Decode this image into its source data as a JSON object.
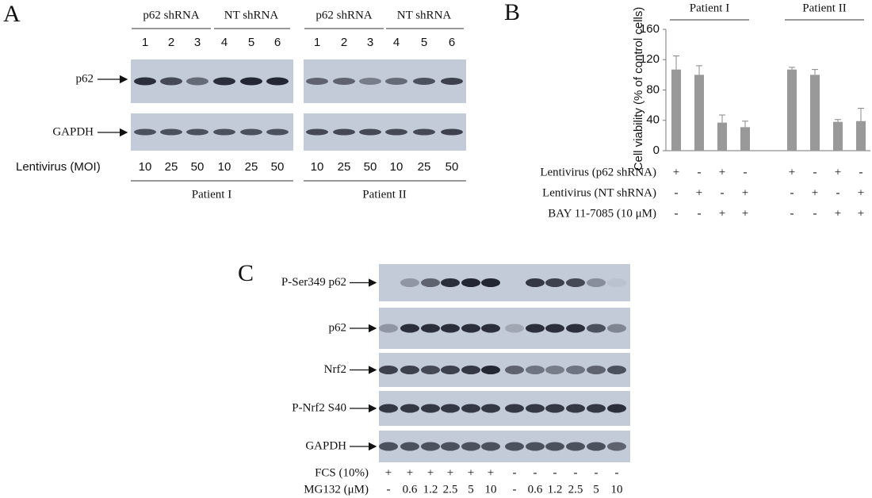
{
  "panel_a": {
    "letter": "A",
    "groups": [
      "p62 shRNA",
      "NT shRNA",
      "p62 shRNA",
      "NT shRNA"
    ],
    "lanes": [
      "1",
      "2",
      "3",
      "4",
      "5",
      "6",
      "1",
      "2",
      "3",
      "4",
      "5",
      "6"
    ],
    "rows": [
      "p62",
      "GAPDH"
    ],
    "moi_label": "Lentivirus (MOI)",
    "moi": [
      "10",
      "25",
      "50",
      "10",
      "25",
      "50",
      "10",
      "25",
      "50",
      "10",
      "25",
      "50"
    ],
    "patients": [
      "Patient I",
      "Patient II"
    ]
  },
  "chart_data": {
    "type": "bar",
    "letter": "B",
    "group_labels": [
      "Patient I",
      "Patient II"
    ],
    "y_label": "Cell viability (% of control cells)",
    "values": [
      107,
      100,
      37,
      31,
      107,
      100,
      38,
      39
    ],
    "errors": [
      18,
      12,
      10,
      8,
      3,
      7,
      3,
      17
    ],
    "color": "#999999",
    "ylim": [
      0,
      160
    ],
    "yticks": [
      0,
      40,
      80,
      120,
      160
    ],
    "condition_rows": [
      {
        "label": "Lentivirus (p62 shRNA)",
        "signs": [
          "+",
          "-",
          "+",
          "-",
          "+",
          "-",
          "+",
          "-"
        ]
      },
      {
        "label": "Lentivirus (NT shRNA)",
        "signs": [
          "-",
          "+",
          "-",
          "+",
          "-",
          "+",
          "-",
          "+"
        ]
      },
      {
        "label": "BAY 11-7085 (10 μM)",
        "signs": [
          "-",
          "-",
          "+",
          "+",
          "-",
          "-",
          "+",
          "+"
        ]
      }
    ]
  },
  "panel_c": {
    "letter": "C",
    "rows": [
      "P-Ser349 p62",
      "p62",
      "Nrf2",
      "P-Nrf2 S40",
      "GAPDH"
    ],
    "conditions": [
      {
        "label": "FCS (10%)",
        "values": [
          "+",
          "+",
          "+",
          "+",
          "+",
          "+",
          "-",
          "-",
          "-",
          "-",
          "-",
          "-"
        ]
      },
      {
        "label": "MG132 (μM)",
        "values": [
          "-",
          "0.6",
          "1.2",
          "2.5",
          "5",
          "10",
          "-",
          "0.6",
          "1.2",
          "2.5",
          "5",
          "10"
        ]
      }
    ]
  }
}
